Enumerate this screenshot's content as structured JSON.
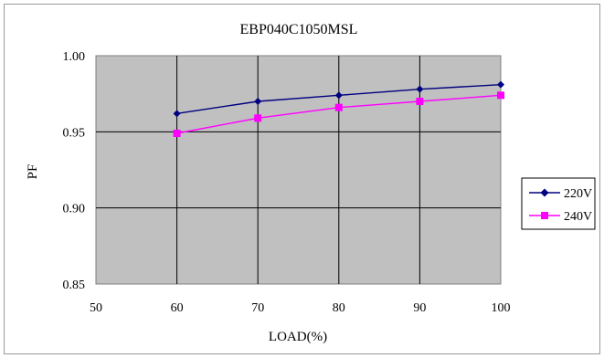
{
  "chart_data": {
    "type": "line",
    "title": "EBP040C1050MSL",
    "xlabel": "LOAD(%)",
    "ylabel": "PF",
    "x": [
      60,
      70,
      80,
      90,
      100
    ],
    "xlim": [
      50,
      100
    ],
    "ylim": [
      0.85,
      1.0
    ],
    "xticks": [
      "50",
      "60",
      "70",
      "80",
      "90",
      "100"
    ],
    "yticks": [
      "0.85",
      "0.90",
      "0.95",
      "1.00"
    ],
    "grid": true,
    "legend_position": "right",
    "plot_background": "#c0c0c0",
    "series": [
      {
        "name": "220V",
        "color": "#000080",
        "marker": "diamond",
        "values": [
          0.962,
          0.97,
          0.974,
          0.978,
          0.981
        ]
      },
      {
        "name": "240V",
        "color": "#ff00ff",
        "marker": "square",
        "values": [
          0.949,
          0.959,
          0.966,
          0.97,
          0.974
        ]
      }
    ]
  }
}
